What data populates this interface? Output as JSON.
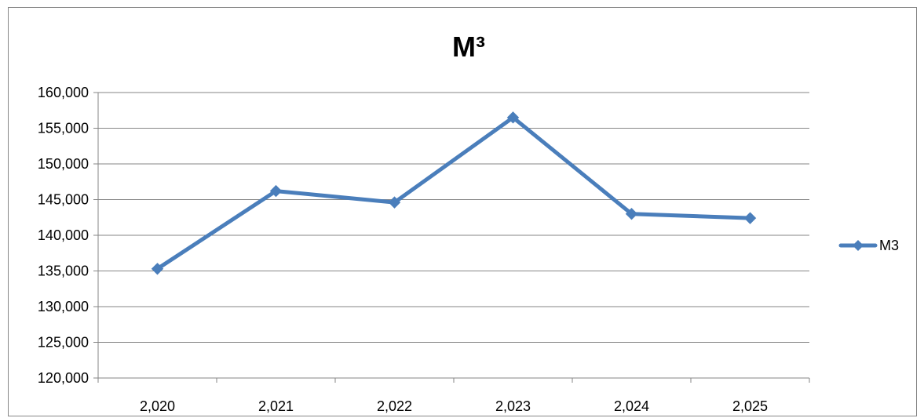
{
  "chart_data": {
    "type": "line",
    "title": "M³",
    "xlabel": "",
    "ylabel": "",
    "categories": [
      "2,020",
      "2,021",
      "2,022",
      "2,023",
      "2,024",
      "2,025"
    ],
    "y_ticks": [
      "120,000",
      "125,000",
      "130,000",
      "135,000",
      "140,000",
      "145,000",
      "150,000",
      "155,000",
      "160,000"
    ],
    "ylim": [
      120000,
      160000
    ],
    "y_step": 5000,
    "grid": true,
    "legend_position": "right",
    "series": [
      {
        "name": "M3",
        "color": "#4a7ebb",
        "marker": "diamond",
        "values": [
          135300,
          146200,
          144600,
          156500,
          143000,
          142400
        ]
      }
    ]
  }
}
